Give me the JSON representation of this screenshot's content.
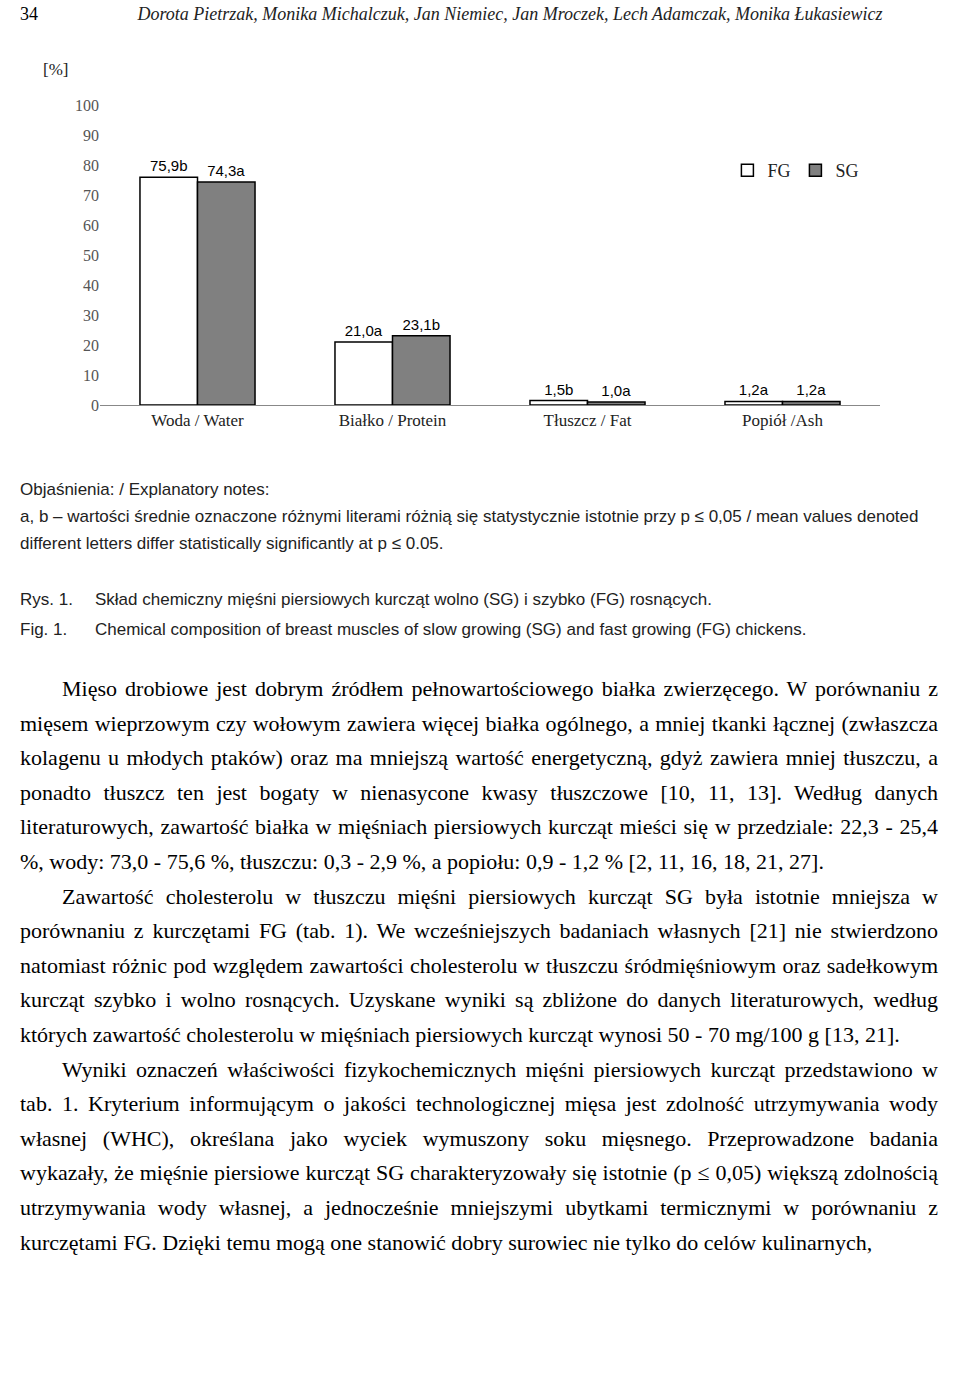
{
  "page": {
    "number": "34",
    "authors": "Dorota Pietrzak, Monika Michalczuk, Jan Niemiec, Jan Mroczek, Lech Adamczak, Monika Łukasiewicz"
  },
  "chart_data": {
    "type": "bar",
    "y_label": "[%]",
    "categories": [
      "Woda / Water",
      "Białko / Protein",
      "Tłuszcz / Fat",
      "Popiół /Ash"
    ],
    "series": [
      {
        "name": "FG",
        "color": "#ffffff",
        "values": [
          75.9,
          21.0,
          1.5,
          1.2
        ],
        "value_labels": [
          "75,9b",
          "21,0a",
          "1,5b",
          "1,2a"
        ]
      },
      {
        "name": "SG",
        "color": "#808080",
        "values": [
          74.3,
          23.1,
          1.0,
          1.2
        ],
        "value_labels": [
          "74,3a",
          "23,1b",
          "1,0a",
          "1,2a"
        ]
      }
    ],
    "ylim": [
      0,
      100
    ],
    "yticks": [
      0,
      10,
      20,
      30,
      40,
      50,
      60,
      70,
      80,
      90,
      100
    ],
    "grid": false,
    "legend": "upper right",
    "data_labels": true
  },
  "notes": {
    "title": "Objaśnienia: / Explanatory notes:",
    "text": "a, b – wartości średnie oznaczone różnymi literami różnią się statystycznie istotnie przy p ≤ 0,05 / mean values denoted different letters differ statistically significantly at  p ≤ 0.05."
  },
  "caption": [
    {
      "label": "Rys. 1.",
      "text": "Skład chemiczny mięśni piersiowych kurcząt wolno (SG) i szybko (FG) rosnących."
    },
    {
      "label": "Fig. 1.",
      "text": "Chemical composition of breast muscles of slow growing (SG) and fast growing (FG) chickens."
    }
  ],
  "body": [
    "Mięso drobiowe jest dobrym źródłem pełnowartościowego białka zwierzęcego. W porównaniu z mięsem wieprzowym czy wołowym zawiera więcej białka ogólnego, a mniej tkanki łącznej (zwłaszcza kolagenu u młodych ptaków) oraz ma mniejszą wartość energetyczną, gdyż zawiera mniej tłuszczu, a ponadto tłuszcz ten jest bogaty w nienasycone kwasy tłuszczowe [10, 11, 13]. Według danych literaturowych, zawartość białka w mięśniach piersiowych kurcząt mieści się w przedziale: 22,3 - 25,4 %, wody: 73,0 - 75,6 %, tłuszczu: 0,3 - 2,9 %, a popiołu: 0,9 - 1,2 % [2, 11, 16, 18, 21, 27].",
    "Zawartość cholesterolu w tłuszczu mięśni piersiowych kurcząt SG była istotnie mniejsza w porównaniu z kurczętami FG (tab. 1). We wcześniejszych badaniach własnych [21] nie stwierdzono natomiast różnic pod względem zawartości cholesterolu w tłuszczu śródmięśniowym oraz sadełkowym kurcząt szybko i wolno rosnących. Uzyskane wyniki są zbliżone do danych literaturowych, według których zawartość cholesterolu w mięśniach piersiowych kurcząt wynosi 50 - 70 mg/100 g [13, 21].",
    "Wyniki oznaczeń właściwości fizykochemicznych mięśni piersiowych kurcząt przedstawiono w tab. 1. Kryterium informującym o jakości technologicznej mięsa jest zdolność utrzymywania wody własnej (WHC), określana jako wyciek wymuszony soku mięsnego. Przeprowadzone badania wykazały, że mięśnie piersiowe kurcząt SG charakteryzowały się istotnie (p ≤ 0,05) większą zdolnością utrzymywania wody własnej, a jednocześnie mniejszymi ubytkami termicznymi w porównaniu z kurczętami FG. Dzięki temu mogą one stanowić dobry surowiec nie tylko do celów kulinarnych,"
  ]
}
